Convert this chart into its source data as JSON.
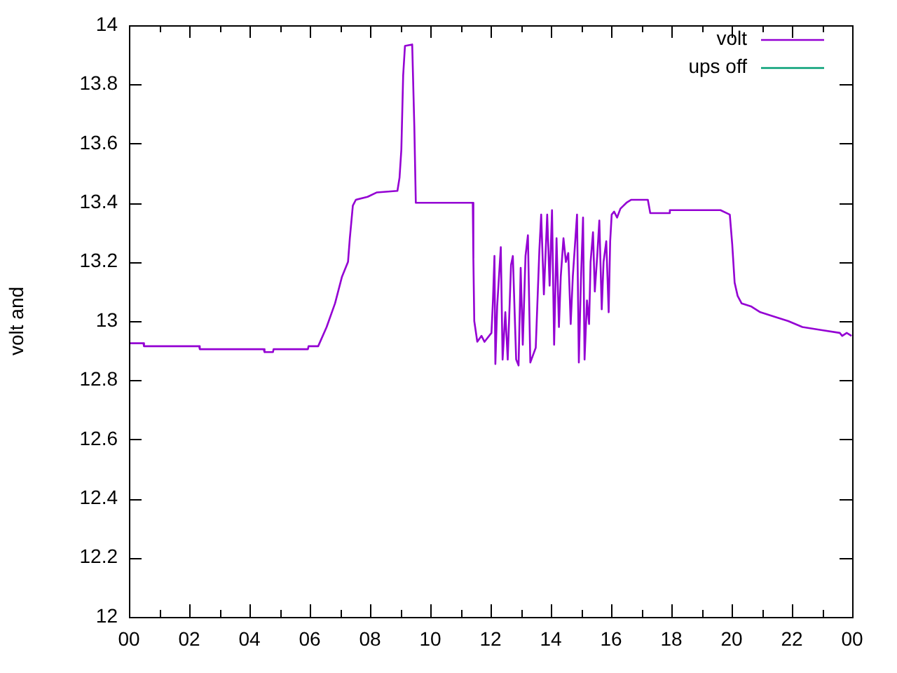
{
  "chart_data": {
    "type": "line",
    "ylabel": "volt and",
    "legend": "top right",
    "xlim": [
      0,
      24
    ],
    "xticks": [
      {
        "value": 0,
        "label": "00"
      },
      {
        "value": 1,
        "label": null
      },
      {
        "value": 2,
        "label": "02"
      },
      {
        "value": 3,
        "label": null
      },
      {
        "value": 4,
        "label": "04"
      },
      {
        "value": 5,
        "label": null
      },
      {
        "value": 6,
        "label": "06"
      },
      {
        "value": 7,
        "label": null
      },
      {
        "value": 8,
        "label": "08"
      },
      {
        "value": 9,
        "label": null
      },
      {
        "value": 10,
        "label": "10"
      },
      {
        "value": 11,
        "label": null
      },
      {
        "value": 12,
        "label": "12"
      },
      {
        "value": 13,
        "label": null
      },
      {
        "value": 14,
        "label": "14"
      },
      {
        "value": 15,
        "label": null
      },
      {
        "value": 16,
        "label": "16"
      },
      {
        "value": 17,
        "label": null
      },
      {
        "value": 18,
        "label": "18"
      },
      {
        "value": 19,
        "label": null
      },
      {
        "value": 20,
        "label": "20"
      },
      {
        "value": 21,
        "label": null
      },
      {
        "value": 22,
        "label": "22"
      },
      {
        "value": 23,
        "label": null
      },
      {
        "value": 24,
        "label": "00"
      }
    ],
    "ylim": [
      12,
      14
    ],
    "yticks": [
      12,
      12.2,
      12.4,
      12.6,
      12.8,
      13,
      13.2,
      13.4,
      13.6,
      13.8,
      14
    ],
    "series": [
      {
        "name": "volt",
        "color": "#9400d3",
        "x": [
          0,
          0.48,
          0.5,
          2.33,
          2.35,
          4.47,
          4.5,
          4.78,
          4.8,
          5.94,
          5.96,
          6.28,
          6.56,
          6.84,
          7.07,
          7.27,
          7.33,
          7.43,
          7.53,
          7.92,
          8.23,
          8.91,
          8.98,
          9.04,
          9.1,
          9.16,
          9.4,
          9.47,
          9.52,
          11.41,
          11.43,
          11.46,
          11.56,
          11.7,
          11.8,
          12.03,
          12.08,
          12.13,
          12.16,
          12.22,
          12.34,
          12.4,
          12.49,
          12.57,
          12.68,
          12.74,
          12.85,
          12.93,
          13.0,
          13.07,
          13.16,
          13.24,
          13.32,
          13.5,
          13.62,
          13.68,
          13.77,
          13.88,
          13.96,
          14.04,
          14.11,
          14.19,
          14.27,
          14.33,
          14.42,
          14.5,
          14.58,
          14.66,
          14.73,
          14.87,
          14.93,
          15.0,
          15.07,
          15.12,
          15.2,
          15.27,
          15.32,
          15.4,
          15.46,
          15.54,
          15.61,
          15.69,
          15.75,
          15.84,
          15.92,
          15.97,
          16.02,
          16.1,
          16.2,
          16.31,
          16.51,
          16.67,
          17.22,
          17.3,
          17.92,
          17.95,
          19.63,
          19.94,
          20.02,
          20.1,
          20.2,
          20.33,
          20.64,
          20.95,
          21.42,
          21.88,
          22.35,
          22.97,
          23.59,
          23.67,
          23.82,
          23.98
        ],
        "values": [
          12.925,
          12.925,
          12.915,
          12.915,
          12.905,
          12.905,
          12.895,
          12.895,
          12.905,
          12.905,
          12.915,
          12.915,
          12.98,
          13.06,
          13.15,
          13.2,
          13.28,
          13.39,
          13.41,
          13.42,
          13.435,
          13.44,
          13.485,
          13.58,
          13.83,
          13.93,
          13.935,
          13.66,
          13.4,
          13.4,
          13.21,
          13.0,
          12.93,
          12.95,
          12.93,
          12.96,
          13.07,
          13.22,
          12.855,
          13.05,
          13.25,
          12.87,
          13.03,
          12.87,
          13.19,
          13.22,
          12.87,
          12.85,
          13.18,
          12.92,
          13.22,
          13.29,
          12.86,
          12.91,
          13.24,
          13.36,
          13.09,
          13.36,
          13.12,
          13.375,
          12.92,
          13.28,
          12.98,
          13.15,
          13.28,
          13.2,
          13.23,
          12.99,
          13.15,
          13.36,
          12.86,
          13.14,
          13.35,
          12.87,
          13.07,
          12.99,
          13.2,
          13.3,
          13.1,
          13.22,
          13.34,
          13.04,
          13.2,
          13.27,
          13.03,
          13.27,
          13.36,
          13.37,
          13.35,
          13.38,
          13.4,
          13.41,
          13.41,
          13.365,
          13.365,
          13.375,
          13.375,
          13.36,
          13.26,
          13.13,
          13.085,
          13.06,
          13.05,
          13.03,
          13.015,
          13.0,
          12.98,
          12.97,
          12.96,
          12.95,
          12.96,
          12.95
        ]
      },
      {
        "name": "ups off",
        "color": "#009e73"
      }
    ]
  }
}
